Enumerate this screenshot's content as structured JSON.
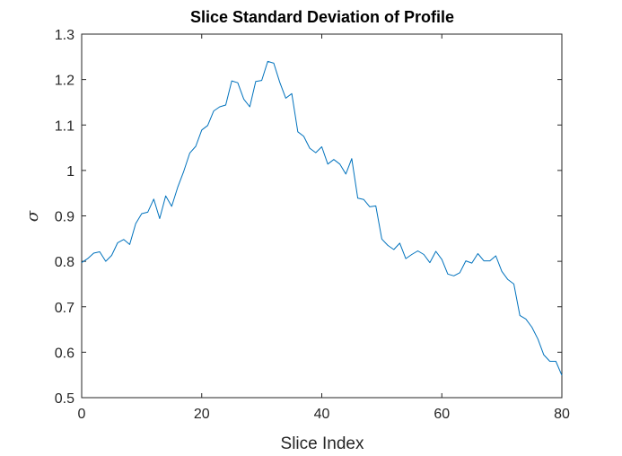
{
  "chart_data": {
    "type": "line",
    "title": "Slice Standard Deviation of Profile",
    "xlabel": "Slice Index",
    "ylabel": "σ",
    "xlim": [
      0,
      80
    ],
    "ylim": [
      0.5,
      1.3
    ],
    "xticks": [
      0,
      20,
      40,
      60,
      80
    ],
    "xtick_labels": [
      "0",
      "20",
      "40",
      "60",
      "80"
    ],
    "yticks": [
      0.5,
      0.6,
      0.7,
      0.8,
      0.9,
      1.0,
      1.1,
      1.2,
      1.3
    ],
    "ytick_labels": [
      "0.5",
      "0.6",
      "0.7",
      "0.8",
      "0.9",
      "1",
      "1.1",
      "1.2",
      "1.3"
    ],
    "grid": false,
    "box": true,
    "line_color": "#0072BD",
    "series": [
      {
        "x": [
          0,
          1,
          2,
          3,
          4,
          5,
          6,
          7,
          8,
          9,
          10,
          11,
          12,
          13,
          14,
          15,
          16,
          17,
          18,
          19,
          20,
          21,
          22,
          23,
          24,
          25,
          26,
          27,
          28,
          29,
          30,
          31,
          32,
          33,
          34,
          35,
          36,
          37,
          38,
          39,
          40,
          41,
          42,
          43,
          44,
          45,
          46,
          47,
          48,
          49,
          50,
          51,
          52,
          53,
          54,
          55,
          56,
          57,
          58,
          59,
          60,
          61,
          62,
          63,
          64,
          65,
          66,
          67,
          68,
          69,
          70,
          71,
          72,
          73,
          74,
          75,
          76,
          77,
          78,
          79,
          80
        ],
        "values": [
          0.797,
          0.806,
          0.818,
          0.821,
          0.8,
          0.813,
          0.841,
          0.848,
          0.837,
          0.883,
          0.905,
          0.908,
          0.937,
          0.894,
          0.944,
          0.921,
          0.963,
          0.998,
          1.038,
          1.053,
          1.089,
          1.099,
          1.131,
          1.14,
          1.144,
          1.197,
          1.193,
          1.157,
          1.14,
          1.196,
          1.198,
          1.24,
          1.236,
          1.194,
          1.159,
          1.169,
          1.085,
          1.075,
          1.049,
          1.039,
          1.052,
          1.014,
          1.024,
          1.014,
          0.992,
          1.026,
          0.939,
          0.936,
          0.92,
          0.922,
          0.849,
          0.835,
          0.826,
          0.84,
          0.806,
          0.815,
          0.823,
          0.815,
          0.797,
          0.822,
          0.804,
          0.772,
          0.768,
          0.775,
          0.801,
          0.796,
          0.817,
          0.801,
          0.801,
          0.812,
          0.778,
          0.76,
          0.75,
          0.681,
          0.673,
          0.655,
          0.629,
          0.594,
          0.58,
          0.58,
          0.549
        ]
      }
    ]
  }
}
